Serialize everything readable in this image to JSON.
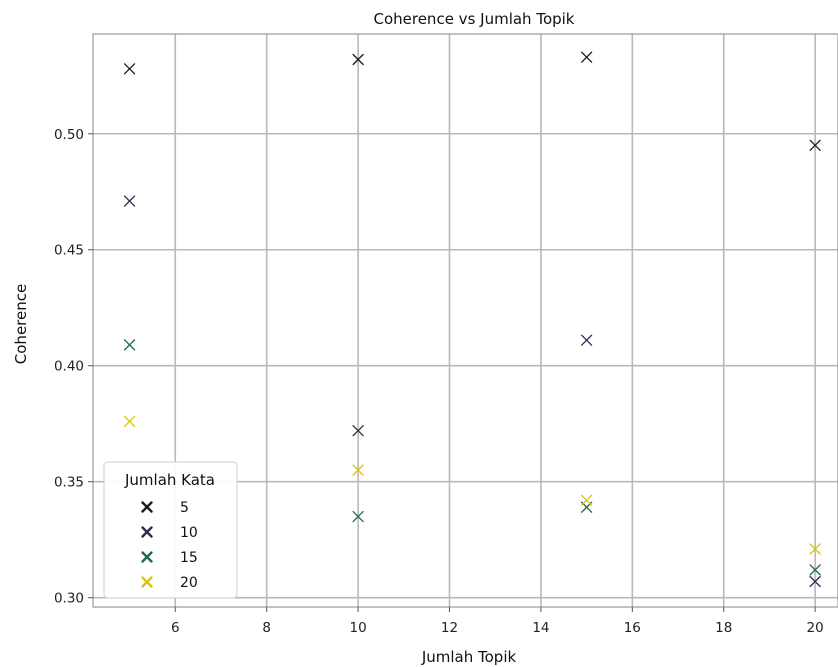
{
  "chart_data": {
    "type": "scatter",
    "title": "Coherence vs Jumlah Topik",
    "xlabel": "Jumlah Topik",
    "ylabel": "Coherence",
    "xlim": [
      4.2,
      20.5
    ],
    "ylim": [
      0.296,
      0.543
    ],
    "xticks": [
      6,
      8,
      10,
      12,
      14,
      16,
      18,
      20
    ],
    "yticks": [
      0.3,
      0.35,
      0.4,
      0.45,
      0.5
    ],
    "ytick_labels": [
      "0.30",
      "0.35",
      "0.40",
      "0.45",
      "0.50"
    ],
    "grid": true,
    "marker": "x",
    "legend": {
      "title": "Jumlah Kata",
      "position": "lower-left"
    },
    "series": [
      {
        "name": "5",
        "color": "#1a1a1a",
        "x": [
          5,
          10,
          15,
          20
        ],
        "y": [
          0.528,
          0.532,
          0.533,
          0.495
        ]
      },
      {
        "name": "10",
        "color": "#2b2f4a",
        "x": [
          5,
          10,
          15,
          20
        ],
        "y": [
          0.471,
          0.372,
          0.411,
          0.307
        ]
      },
      {
        "name": "15",
        "color": "#1f6b4e",
        "x": [
          5,
          10,
          15,
          20
        ],
        "y": [
          0.409,
          0.335,
          0.339,
          0.312
        ]
      },
      {
        "name": "20",
        "color": "#d8c414",
        "x": [
          5,
          10,
          15,
          20
        ],
        "y": [
          0.376,
          0.355,
          0.342,
          0.321
        ]
      }
    ]
  }
}
